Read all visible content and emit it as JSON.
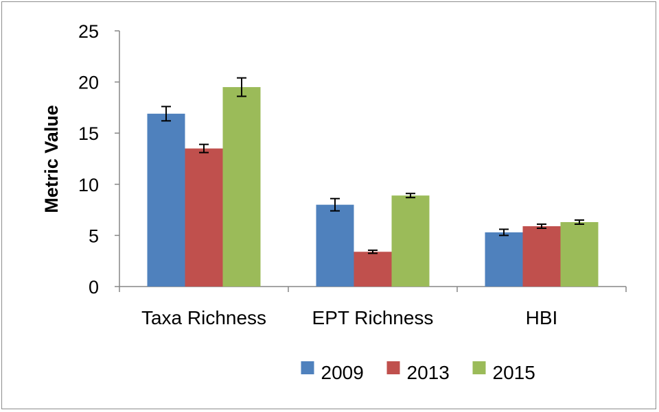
{
  "chart_data": {
    "type": "bar",
    "title": "",
    "xlabel": "",
    "ylabel": "Metric Value",
    "ylim": [
      0,
      25
    ],
    "yticks": [
      0,
      5,
      10,
      15,
      20,
      25
    ],
    "grid": false,
    "legend_position": "bottom",
    "categories": [
      "Taxa Richness",
      "EPT Richness",
      "HBI"
    ],
    "series": [
      {
        "name": "2009",
        "color": "#4f81bd",
        "values": [
          16.9,
          8.0,
          5.3
        ],
        "errors": [
          0.7,
          0.6,
          0.3
        ]
      },
      {
        "name": "2013",
        "color": "#c0504d",
        "values": [
          13.5,
          3.4,
          5.9
        ],
        "errors": [
          0.4,
          0.15,
          0.2
        ]
      },
      {
        "name": "2015",
        "color": "#9bbb59",
        "values": [
          19.5,
          8.9,
          6.3
        ],
        "errors": [
          0.9,
          0.2,
          0.2
        ]
      }
    ]
  }
}
